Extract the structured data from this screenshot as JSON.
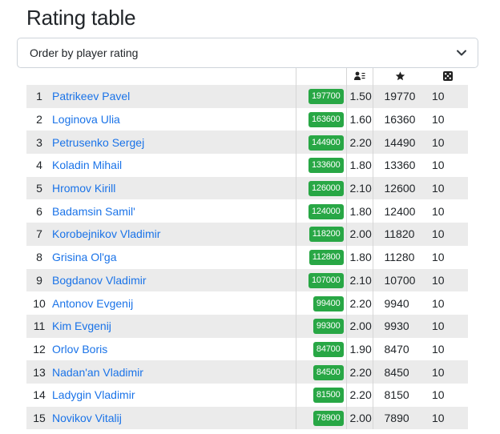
{
  "page": {
    "title": "Rating table"
  },
  "order_select": {
    "value": "Order by player rating",
    "icon": "chevron-down-icon"
  },
  "table": {
    "header_icons": [
      "players-list-icon",
      "star-icon",
      "dice-icon"
    ],
    "badge_color": "#28a745",
    "link_color": "#1a73e8",
    "rows": [
      {
        "rank": "1",
        "name": "Patrikeev Pavel",
        "badge": "197700",
        "coef": "1.50",
        "rating": "19770",
        "games": "10"
      },
      {
        "rank": "2",
        "name": "Loginova Ulia",
        "badge": "163600",
        "coef": "1.60",
        "rating": "16360",
        "games": "10"
      },
      {
        "rank": "3",
        "name": "Petrusenko Sergej",
        "badge": "144900",
        "coef": "2.20",
        "rating": "14490",
        "games": "10"
      },
      {
        "rank": "4",
        "name": "Koladin Mihail",
        "badge": "133600",
        "coef": "1.80",
        "rating": "13360",
        "games": "10"
      },
      {
        "rank": "5",
        "name": "Hromov Kirill",
        "badge": "126000",
        "coef": "2.10",
        "rating": "12600",
        "games": "10"
      },
      {
        "rank": "6",
        "name": "Badamsin Samil'",
        "badge": "124000",
        "coef": "1.80",
        "rating": "12400",
        "games": "10"
      },
      {
        "rank": "7",
        "name": "Korobejnikov Vladimir",
        "badge": "118200",
        "coef": "2.00",
        "rating": "11820",
        "games": "10"
      },
      {
        "rank": "8",
        "name": "Grisina Ol'ga",
        "badge": "112800",
        "coef": "1.80",
        "rating": "11280",
        "games": "10"
      },
      {
        "rank": "9",
        "name": "Bogdanov Vladimir",
        "badge": "107000",
        "coef": "2.10",
        "rating": "10700",
        "games": "10"
      },
      {
        "rank": "10",
        "name": "Antonov Evgenij",
        "badge": "99400",
        "coef": "2.20",
        "rating": "9940",
        "games": "10"
      },
      {
        "rank": "11",
        "name": "Kim Evgenij",
        "badge": "99300",
        "coef": "2.00",
        "rating": "9930",
        "games": "10"
      },
      {
        "rank": "12",
        "name": "Orlov Boris",
        "badge": "84700",
        "coef": "1.90",
        "rating": "8470",
        "games": "10"
      },
      {
        "rank": "13",
        "name": "Nadan'an Vladimir",
        "badge": "84500",
        "coef": "2.20",
        "rating": "8450",
        "games": "10"
      },
      {
        "rank": "14",
        "name": "Ladygin Vladimir",
        "badge": "81500",
        "coef": "2.20",
        "rating": "8150",
        "games": "10"
      },
      {
        "rank": "15",
        "name": "Novikov Vitalij",
        "badge": "78900",
        "coef": "2.00",
        "rating": "7890",
        "games": "10"
      }
    ]
  }
}
